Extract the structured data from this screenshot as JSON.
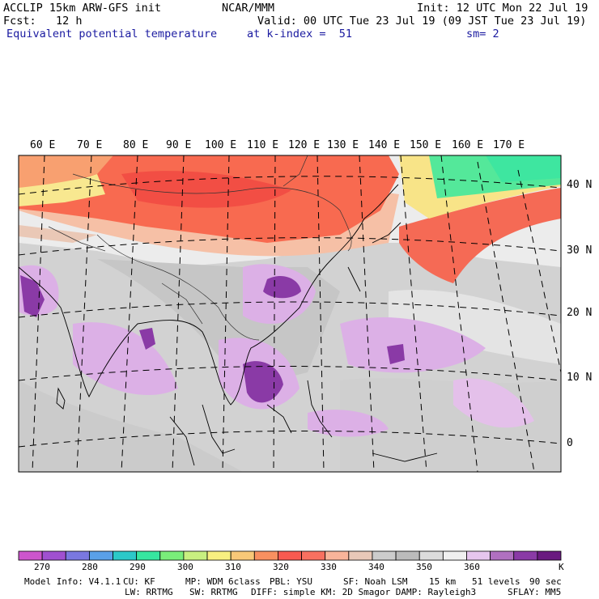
{
  "header": {
    "model_line": "ACCLIP 15km ARW-GFS init",
    "org": "NCAR/MMM",
    "init": "Init: 12 UTC Mon 22 Jul 19",
    "fcst": "Fcst:   12 h",
    "valid": "Valid: 00 UTC Tue 23 Jul 19 (09 JST Tue 23 Jul 19)",
    "field": "Equivalent potential temperature",
    "level": "at k-index =  51",
    "smooth": "sm= 2"
  },
  "map": {
    "longitude_labels": [
      "60 E",
      "70 E",
      "80 E",
      "90 E",
      "100 E",
      "110 E",
      "120 E",
      "130 E",
      "140 E",
      "150 E",
      "160 E",
      "170 E"
    ],
    "latitude_labels": [
      "40 N",
      "30 N",
      "20 N",
      "10 N",
      "0"
    ]
  },
  "colorbar": {
    "units": "K",
    "tick_labels": [
      "270",
      "280",
      "290",
      "300",
      "310",
      "320",
      "330",
      "340",
      "350",
      "360"
    ],
    "colors": [
      "#cc55cc",
      "#a050d0",
      "#7a78e0",
      "#5aa0e8",
      "#2cc8c8",
      "#36e6a0",
      "#7aee7a",
      "#c8f080",
      "#f8f080",
      "#f8c878",
      "#f89060",
      "#f85a50",
      "#f87060",
      "#f8b49a",
      "#e8c8b8",
      "#cccccc",
      "#bbbbbb",
      "#dcdcdc",
      "#f0f0f0",
      "#e6c6ee",
      "#b070c0",
      "#8a3aa6",
      "#6a1a80"
    ]
  },
  "footer": {
    "line1": {
      "model_info": "Model Info: V4.1.1",
      "cu": "CU: KF",
      "mp": "MP: WDM 6class",
      "pbl": "PBL: YSU",
      "sf": "SF: Noah LSM",
      "res": "15 km",
      "levels": "51 levels",
      "dt": "90 sec"
    },
    "line2": {
      "lw": "LW: RRTMG",
      "sw": "SW: RRTMG",
      "diff": "DIFF: simple KM: 2D Smagor DAMP: Rayleigh3",
      "sflay": "SFLAY: MM5"
    }
  }
}
